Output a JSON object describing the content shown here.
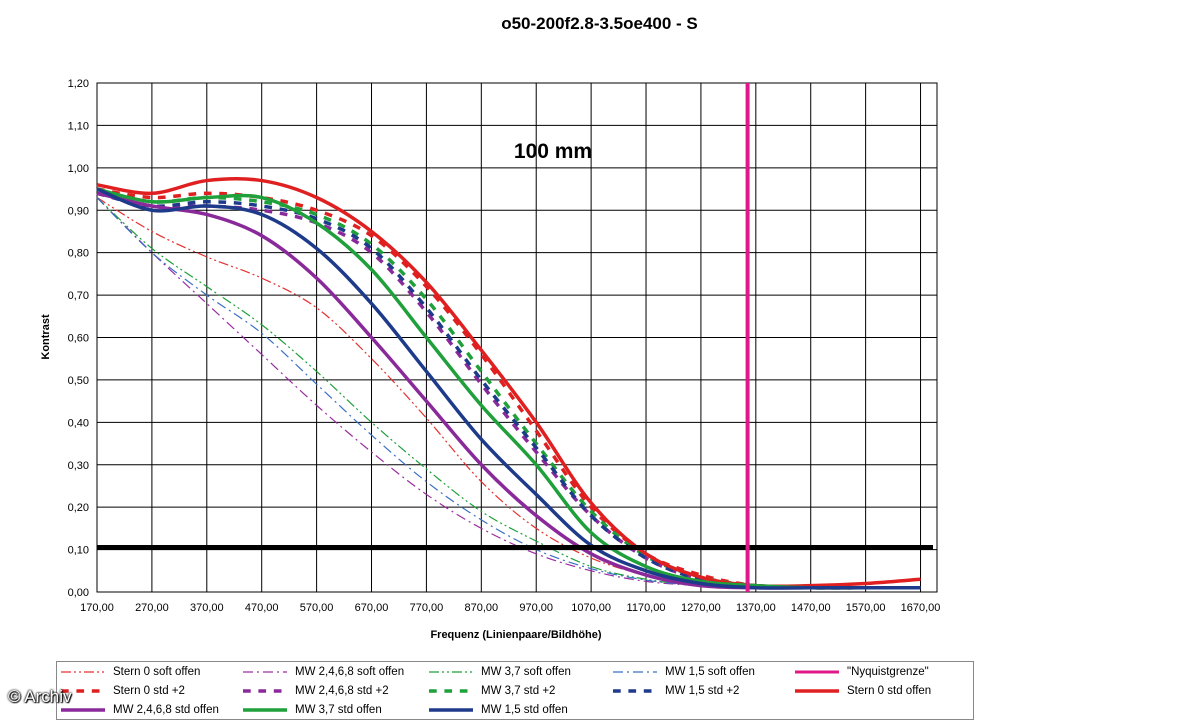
{
  "chart_data": {
    "type": "line",
    "title": "o50-200f2.8-3.5oe400 - S",
    "annotation": "100 mm",
    "xlabel": "Frequenz (Linienpaare/Bildhöhe)",
    "ylabel": "Kontrast",
    "xlim": [
      170,
      1700
    ],
    "ylim": [
      0,
      1.2
    ],
    "xticks": [
      "170,00",
      "270,00",
      "370,00",
      "470,00",
      "570,00",
      "670,00",
      "770,00",
      "870,00",
      "970,00",
      "1070,00",
      "1170,00",
      "1270,00",
      "1370,00",
      "1470,00",
      "1570,00",
      "1670,00"
    ],
    "xtick_values": [
      170,
      270,
      370,
      470,
      570,
      670,
      770,
      870,
      970,
      1070,
      1170,
      1270,
      1370,
      1470,
      1570,
      1670
    ],
    "yticks": [
      "0,00",
      "0,10",
      "0,20",
      "0,30",
      "0,40",
      "0,50",
      "0,60",
      "0,70",
      "0,80",
      "0,90",
      "1,00",
      "1,10",
      "1,20"
    ],
    "ytick_values": [
      0,
      0.1,
      0.2,
      0.3,
      0.4,
      0.5,
      0.6,
      0.7,
      0.8,
      0.9,
      1.0,
      1.1,
      1.2
    ],
    "grid": true,
    "reference_lines": [
      {
        "orientation": "horizontal",
        "value": 0.105,
        "color": "#000000"
      },
      {
        "orientation": "vertical",
        "value": 1355,
        "color": "#e0198a",
        "legend": "\"Nyquistgrenze\""
      }
    ],
    "series": [
      {
        "name": "Stern 0 soft offen",
        "color": "#e53030",
        "style": "dashdotdot",
        "width": 1.2,
        "x": [
          170,
          270,
          370,
          470,
          570,
          670,
          770,
          870,
          970,
          1070,
          1170,
          1270,
          1370,
          1470,
          1570,
          1670
        ],
        "y": [
          0.93,
          0.85,
          0.79,
          0.74,
          0.67,
          0.55,
          0.41,
          0.26,
          0.15,
          0.08,
          0.04,
          0.02,
          0.01,
          0.01,
          0.01,
          0.01
        ]
      },
      {
        "name": "MW 2,4,6,8 soft offen",
        "color": "#9a2da0",
        "style": "dashdot",
        "width": 1.2,
        "x": [
          170,
          270,
          370,
          470,
          570,
          670,
          770,
          870,
          970,
          1070,
          1170,
          1270,
          1370,
          1470,
          1570,
          1670
        ],
        "y": [
          0.93,
          0.8,
          0.68,
          0.56,
          0.44,
          0.33,
          0.23,
          0.15,
          0.09,
          0.05,
          0.025,
          0.015,
          0.01,
          0.01,
          0.01,
          0.01
        ]
      },
      {
        "name": "MW 3,7 soft offen",
        "color": "#1fa03a",
        "style": "dashdotdot",
        "width": 1.2,
        "x": [
          170,
          270,
          370,
          470,
          570,
          670,
          770,
          870,
          970,
          1070,
          1170,
          1270,
          1370,
          1470,
          1570,
          1670
        ],
        "y": [
          0.93,
          0.81,
          0.72,
          0.63,
          0.52,
          0.4,
          0.29,
          0.19,
          0.12,
          0.06,
          0.03,
          0.015,
          0.01,
          0.01,
          0.01,
          0.01
        ]
      },
      {
        "name": "MW 1,5 soft offen",
        "color": "#3a6fc4",
        "style": "dashdot",
        "width": 1.2,
        "x": [
          170,
          270,
          370,
          470,
          570,
          670,
          770,
          870,
          970,
          1070,
          1170,
          1270,
          1370,
          1470,
          1570,
          1670
        ],
        "y": [
          0.93,
          0.8,
          0.7,
          0.61,
          0.49,
          0.37,
          0.26,
          0.17,
          0.1,
          0.055,
          0.028,
          0.015,
          0.01,
          0.01,
          0.01,
          0.01
        ]
      },
      {
        "name": "\"Nyquistgrenze\"",
        "color": "#e0198a",
        "style": "solid",
        "width": 3,
        "x": [],
        "y": []
      },
      {
        "name": "Stern 0 std +2",
        "color": "#e02020",
        "style": "dashed",
        "width": 3.5,
        "x": [
          170,
          270,
          370,
          470,
          570,
          670,
          770,
          870,
          970,
          1070,
          1170,
          1270,
          1370,
          1470,
          1570,
          1670
        ],
        "y": [
          0.95,
          0.93,
          0.94,
          0.93,
          0.9,
          0.84,
          0.72,
          0.56,
          0.38,
          0.2,
          0.09,
          0.04,
          0.015,
          0.01,
          0.01,
          0.01
        ]
      },
      {
        "name": "MW 2,4,6,8 std +2",
        "color": "#8a2a9a",
        "style": "dashed",
        "width": 3.5,
        "x": [
          170,
          270,
          370,
          470,
          570,
          670,
          770,
          870,
          970,
          1070,
          1170,
          1270,
          1370,
          1470,
          1570,
          1670
        ],
        "y": [
          0.94,
          0.91,
          0.91,
          0.9,
          0.87,
          0.8,
          0.66,
          0.49,
          0.33,
          0.18,
          0.08,
          0.03,
          0.015,
          0.01,
          0.01,
          0.01
        ]
      },
      {
        "name": "MW 3,7 std +2",
        "color": "#1fa03a",
        "style": "dashed",
        "width": 3.5,
        "x": [
          170,
          270,
          370,
          470,
          570,
          670,
          770,
          870,
          970,
          1070,
          1170,
          1270,
          1370,
          1470,
          1570,
          1670
        ],
        "y": [
          0.95,
          0.92,
          0.93,
          0.92,
          0.89,
          0.82,
          0.69,
          0.52,
          0.35,
          0.19,
          0.085,
          0.035,
          0.015,
          0.01,
          0.01,
          0.01
        ]
      },
      {
        "name": "MW 1,5 std +2",
        "color": "#1e3a8a",
        "style": "dashed",
        "width": 3.5,
        "x": [
          170,
          270,
          370,
          470,
          570,
          670,
          770,
          870,
          970,
          1070,
          1170,
          1270,
          1370,
          1470,
          1570,
          1670
        ],
        "y": [
          0.94,
          0.91,
          0.92,
          0.91,
          0.88,
          0.81,
          0.67,
          0.5,
          0.34,
          0.18,
          0.08,
          0.03,
          0.015,
          0.01,
          0.01,
          0.01
        ]
      },
      {
        "name": "Stern 0 std offen",
        "color": "#e02020",
        "style": "solid",
        "width": 3.5,
        "x": [
          170,
          270,
          370,
          470,
          570,
          670,
          770,
          870,
          970,
          1070,
          1170,
          1270,
          1370,
          1470,
          1570,
          1670
        ],
        "y": [
          0.96,
          0.94,
          0.97,
          0.97,
          0.93,
          0.85,
          0.73,
          0.57,
          0.4,
          0.21,
          0.09,
          0.035,
          0.015,
          0.015,
          0.02,
          0.03
        ]
      },
      {
        "name": "MW 2,4,6,8 std offen",
        "color": "#8a2a9a",
        "style": "solid",
        "width": 3.5,
        "x": [
          170,
          270,
          370,
          470,
          570,
          670,
          770,
          870,
          970,
          1070,
          1170,
          1270,
          1370,
          1470,
          1570,
          1670
        ],
        "y": [
          0.94,
          0.91,
          0.89,
          0.84,
          0.74,
          0.6,
          0.45,
          0.3,
          0.18,
          0.09,
          0.04,
          0.015,
          0.01,
          0.01,
          0.01,
          0.01
        ]
      },
      {
        "name": "MW 3,7 std offen",
        "color": "#1fa03a",
        "style": "solid",
        "width": 3.5,
        "x": [
          170,
          270,
          370,
          470,
          570,
          670,
          770,
          870,
          970,
          1070,
          1170,
          1270,
          1370,
          1470,
          1570,
          1670
        ],
        "y": [
          0.95,
          0.92,
          0.93,
          0.93,
          0.87,
          0.76,
          0.6,
          0.44,
          0.3,
          0.14,
          0.06,
          0.025,
          0.015,
          0.01,
          0.01,
          0.01
        ]
      },
      {
        "name": "MW 1,5 std offen",
        "color": "#1e3a8a",
        "style": "solid",
        "width": 3.5,
        "x": [
          170,
          270,
          370,
          470,
          570,
          670,
          770,
          870,
          970,
          1070,
          1170,
          1270,
          1370,
          1470,
          1570,
          1670
        ],
        "y": [
          0.95,
          0.9,
          0.91,
          0.89,
          0.81,
          0.68,
          0.52,
          0.36,
          0.23,
          0.11,
          0.05,
          0.02,
          0.01,
          0.01,
          0.01,
          0.01
        ]
      }
    ]
  },
  "watermark": "© Archiv"
}
